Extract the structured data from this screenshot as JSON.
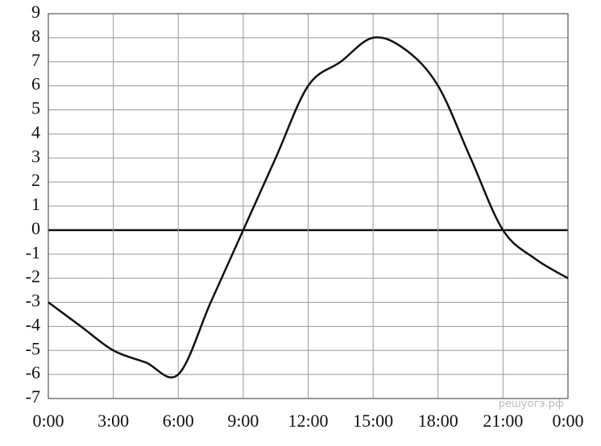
{
  "chart_data": {
    "type": "line",
    "x": [
      0,
      1.5,
      3,
      4.5,
      6,
      7.5,
      9,
      10.5,
      12,
      13.5,
      15,
      16.5,
      18,
      19.5,
      21,
      22.5,
      24
    ],
    "values": [
      -3,
      -4,
      -5,
      -5.5,
      -6,
      -3,
      0,
      3,
      6,
      7,
      8,
      7.5,
      6,
      3,
      0,
      -1.2,
      -2
    ],
    "color": "#111111",
    "xlim": [
      0,
      24
    ],
    "xticks": [
      {
        "value": 0,
        "label": "0:00"
      },
      {
        "value": 3,
        "label": "3:00"
      },
      {
        "value": 6,
        "label": "6:00"
      },
      {
        "value": 9,
        "label": "9:00"
      },
      {
        "value": 12,
        "label": "12:00"
      },
      {
        "value": 15,
        "label": "15:00"
      },
      {
        "value": 18,
        "label": "18:00"
      },
      {
        "value": 21,
        "label": "21:00"
      },
      {
        "value": 24,
        "label": "0:00"
      }
    ],
    "ylim": [
      -7,
      9
    ],
    "yticks": [
      -7,
      -6,
      -5,
      -4,
      -3,
      -2,
      -1,
      0,
      1,
      2,
      3,
      4,
      5,
      6,
      7,
      8,
      9
    ],
    "grid": true,
    "watermark": "решуогэ.рф"
  }
}
